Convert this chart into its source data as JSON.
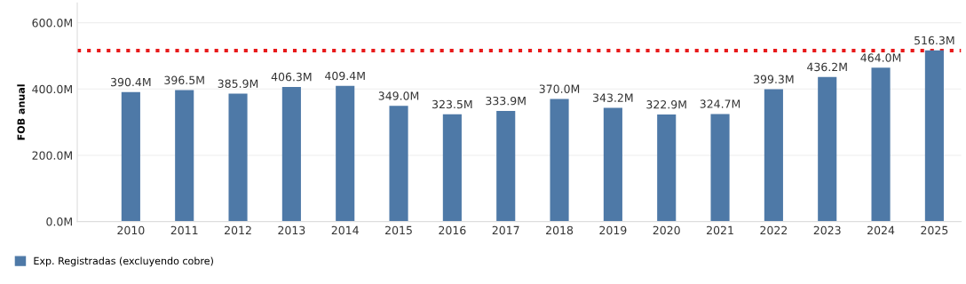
{
  "chart_data": {
    "type": "bar",
    "ylabel": "FOB anual",
    "categories": [
      "2010",
      "2011",
      "2012",
      "2013",
      "2014",
      "2015",
      "2016",
      "2017",
      "2018",
      "2019",
      "2020",
      "2021",
      "2022",
      "2023",
      "2024",
      "2025"
    ],
    "series": [
      {
        "name": "Exp. Registradas (excluyendo cobre)",
        "color": "#4e79a7",
        "values": [
          390.4,
          396.5,
          385.9,
          406.3,
          409.4,
          349.0,
          323.5,
          333.9,
          370.0,
          343.2,
          322.9,
          324.7,
          399.3,
          436.2,
          464.0,
          516.3
        ],
        "value_labels": [
          "390.4M",
          "396.5M",
          "385.9M",
          "406.3M",
          "409.4M",
          "349.0M",
          "323.5M",
          "333.9M",
          "370.0M",
          "343.2M",
          "322.9M",
          "324.7M",
          "399.3M",
          "436.2M",
          "464.0M",
          "516.3M"
        ]
      }
    ],
    "ylim": [
      0,
      660
    ],
    "yticks": [
      {
        "value": 0,
        "label": "0.0M"
      },
      {
        "value": 200,
        "label": "200.0M"
      },
      {
        "value": 400,
        "label": "400.0M"
      },
      {
        "value": 600,
        "label": "600.0M"
      }
    ],
    "ref_lines": [
      {
        "axis": "y",
        "value": 516,
        "color": "#e8191a",
        "line_style": "dotted"
      }
    ],
    "grid": "y",
    "legend": "bottom left"
  }
}
